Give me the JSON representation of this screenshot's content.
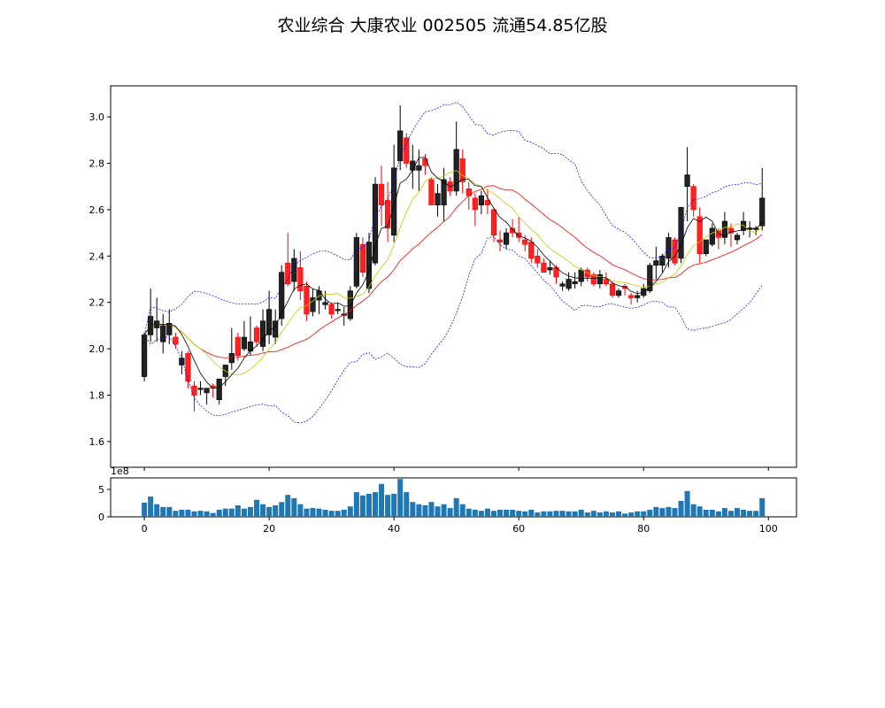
{
  "title": "农业综合 大康农业 002505 流通54.85亿股",
  "colors": {
    "up": "#000000",
    "down": "#ff0000",
    "ma5": "#000000",
    "ma10": "#c8c800",
    "ma20": "#ff0000",
    "boll": "#0000ff",
    "volume": "#1f77b4"
  },
  "chart_data": [
    {
      "type": "candlestick",
      "title": "农业综合 大康农业 002505 流通54.85亿股",
      "xlim": [
        -5.4,
        104.5
      ],
      "ylim": [
        1.489,
        3.134
      ],
      "yticks": [
        "1.6",
        "1.8",
        "2.0",
        "2.2",
        "2.4",
        "2.6",
        "2.8",
        "3.0"
      ],
      "lines": [
        "MA5",
        "MA10",
        "MA20",
        "BOLL upper",
        "BOLL lower"
      ],
      "ohlc": [
        [
          1.88,
          2.07,
          1.86,
          2.06
        ],
        [
          2.06,
          2.26,
          2.03,
          2.14
        ],
        [
          2.09,
          2.22,
          2.03,
          2.12
        ],
        [
          2.03,
          2.15,
          1.98,
          2.1
        ],
        [
          2.06,
          2.17,
          2.02,
          2.11
        ],
        [
          2.05,
          2.07,
          2.0,
          2.02
        ],
        [
          1.93,
          1.99,
          1.89,
          1.96
        ],
        [
          1.98,
          1.99,
          1.83,
          1.86
        ],
        [
          1.84,
          1.86,
          1.73,
          1.8
        ],
        [
          1.83,
          1.86,
          1.8,
          1.83
        ],
        [
          1.81,
          1.83,
          1.76,
          1.83
        ],
        [
          1.84,
          1.85,
          1.79,
          1.83
        ],
        [
          1.78,
          1.87,
          1.76,
          1.87
        ],
        [
          1.88,
          1.93,
          1.84,
          1.93
        ],
        [
          1.94,
          2.09,
          1.91,
          1.98
        ],
        [
          2.05,
          2.07,
          1.95,
          1.97
        ],
        [
          2.0,
          2.12,
          1.99,
          2.05
        ],
        [
          1.99,
          2.14,
          1.97,
          2.03
        ],
        [
          2.09,
          2.1,
          2.01,
          2.03
        ],
        [
          2.01,
          2.17,
          1.99,
          2.12
        ],
        [
          2.06,
          2.25,
          2.02,
          2.17
        ],
        [
          2.05,
          2.17,
          2.02,
          2.12
        ],
        [
          2.13,
          2.36,
          2.1,
          2.33
        ],
        [
          2.37,
          2.5,
          2.27,
          2.28
        ],
        [
          2.29,
          2.43,
          2.25,
          2.39
        ],
        [
          2.35,
          2.42,
          2.21,
          2.25
        ],
        [
          2.27,
          2.29,
          2.12,
          2.15
        ],
        [
          2.16,
          2.26,
          2.14,
          2.22
        ],
        [
          2.21,
          2.27,
          2.15,
          2.25
        ],
        [
          2.19,
          2.25,
          2.17,
          2.2
        ],
        [
          2.19,
          2.2,
          2.13,
          2.15
        ],
        [
          2.17,
          2.2,
          2.15,
          2.17
        ],
        [
          2.15,
          2.18,
          2.1,
          2.15
        ],
        [
          2.13,
          2.27,
          2.12,
          2.25
        ],
        [
          2.27,
          2.5,
          2.26,
          2.48
        ],
        [
          2.45,
          2.48,
          2.31,
          2.33
        ],
        [
          2.26,
          2.5,
          2.24,
          2.46
        ],
        [
          2.37,
          2.74,
          2.36,
          2.71
        ],
        [
          2.71,
          2.79,
          2.53,
          2.62
        ],
        [
          2.64,
          2.72,
          2.46,
          2.52
        ],
        [
          2.49,
          2.88,
          2.46,
          2.78
        ],
        [
          2.81,
          3.05,
          2.77,
          2.94
        ],
        [
          2.91,
          2.93,
          2.78,
          2.8
        ],
        [
          2.77,
          2.88,
          2.69,
          2.81
        ],
        [
          2.77,
          2.86,
          2.68,
          2.79
        ],
        [
          2.82,
          2.84,
          2.75,
          2.79
        ],
        [
          2.73,
          2.74,
          2.62,
          2.62
        ],
        [
          2.62,
          2.71,
          2.57,
          2.67
        ],
        [
          2.62,
          2.78,
          2.55,
          2.73
        ],
        [
          2.72,
          2.74,
          2.66,
          2.68
        ],
        [
          2.68,
          2.98,
          2.66,
          2.86
        ],
        [
          2.82,
          2.86,
          2.67,
          2.72
        ],
        [
          2.69,
          2.72,
          2.6,
          2.66
        ],
        [
          2.65,
          2.67,
          2.53,
          2.6
        ],
        [
          2.62,
          2.68,
          2.58,
          2.66
        ],
        [
          2.64,
          2.69,
          2.58,
          2.62
        ],
        [
          2.6,
          2.61,
          2.46,
          2.49
        ],
        [
          2.47,
          2.51,
          2.42,
          2.46
        ],
        [
          2.45,
          2.52,
          2.43,
          2.5
        ],
        [
          2.52,
          2.56,
          2.48,
          2.5
        ],
        [
          2.5,
          2.57,
          2.46,
          2.48
        ],
        [
          2.47,
          2.49,
          2.42,
          2.45
        ],
        [
          2.46,
          2.48,
          2.37,
          2.39
        ],
        [
          2.4,
          2.43,
          2.35,
          2.37
        ],
        [
          2.37,
          2.39,
          2.34,
          2.33
        ],
        [
          2.34,
          2.38,
          2.32,
          2.35
        ],
        [
          2.35,
          2.36,
          2.28,
          2.31
        ],
        [
          2.27,
          2.29,
          2.25,
          2.28
        ],
        [
          2.26,
          2.33,
          2.25,
          2.3
        ],
        [
          2.28,
          2.33,
          2.26,
          2.29
        ],
        [
          2.29,
          2.35,
          2.27,
          2.34
        ],
        [
          2.34,
          2.35,
          2.29,
          2.31
        ],
        [
          2.32,
          2.33,
          2.27,
          2.28
        ],
        [
          2.28,
          2.34,
          2.26,
          2.32
        ],
        [
          2.3,
          2.33,
          2.27,
          2.28
        ],
        [
          2.28,
          2.29,
          2.22,
          2.23
        ],
        [
          2.23,
          2.26,
          2.22,
          2.25
        ],
        [
          2.27,
          2.28,
          2.23,
          2.26
        ],
        [
          2.23,
          2.24,
          2.19,
          2.22
        ],
        [
          2.22,
          2.25,
          2.2,
          2.23
        ],
        [
          2.23,
          2.28,
          2.22,
          2.26
        ],
        [
          2.25,
          2.37,
          2.24,
          2.36
        ],
        [
          2.36,
          2.44,
          2.3,
          2.38
        ],
        [
          2.36,
          2.41,
          2.33,
          2.4
        ],
        [
          2.39,
          2.5,
          2.35,
          2.48
        ],
        [
          2.47,
          2.48,
          2.36,
          2.37
        ],
        [
          2.39,
          2.61,
          2.37,
          2.61
        ],
        [
          2.7,
          2.87,
          2.55,
          2.75
        ],
        [
          2.7,
          2.71,
          2.57,
          2.6
        ],
        [
          2.57,
          2.61,
          2.37,
          2.41
        ],
        [
          2.41,
          2.47,
          2.4,
          2.47
        ],
        [
          2.45,
          2.54,
          2.44,
          2.52
        ],
        [
          2.51,
          2.52,
          2.43,
          2.48
        ],
        [
          2.48,
          2.59,
          2.45,
          2.55
        ],
        [
          2.52,
          2.54,
          2.44,
          2.5
        ],
        [
          2.47,
          2.5,
          2.45,
          2.49
        ],
        [
          2.51,
          2.59,
          2.49,
          2.55
        ],
        [
          2.52,
          2.55,
          2.48,
          2.52
        ],
        [
          2.52,
          2.53,
          2.49,
          2.52
        ],
        [
          2.53,
          2.78,
          2.51,
          2.65
        ]
      ]
    },
    {
      "type": "bar",
      "xticks": [
        "0",
        "20",
        "40",
        "60",
        "80",
        "100"
      ],
      "yticks": [
        "0",
        "5"
      ],
      "offset_label": "1e8",
      "ylim": [
        0,
        7.1
      ],
      "values": [
        2.6,
        3.7,
        2.3,
        1.8,
        1.8,
        1.1,
        1.3,
        1.3,
        1.0,
        1.1,
        1.0,
        0.7,
        1.3,
        1.5,
        1.5,
        2.1,
        1.5,
        1.8,
        3.1,
        2.3,
        1.8,
        2.1,
        2.7,
        4.0,
        3.4,
        2.3,
        1.5,
        1.6,
        1.5,
        1.3,
        1.1,
        1.1,
        1.3,
        1.9,
        4.5,
        3.9,
        4.2,
        4.5,
        6.0,
        4.0,
        4.2,
        6.9,
        4.5,
        2.7,
        2.3,
        2.1,
        2.7,
        1.9,
        2.3,
        1.6,
        3.4,
        2.3,
        1.5,
        1.3,
        1.1,
        1.5,
        1.1,
        1.3,
        1.3,
        1.3,
        1.1,
        1.0,
        1.3,
        0.8,
        1.0,
        1.0,
        1.1,
        1.1,
        1.0,
        1.0,
        1.3,
        0.8,
        1.1,
        0.8,
        1.0,
        0.8,
        1.0,
        0.6,
        0.8,
        1.0,
        1.0,
        1.3,
        1.8,
        1.6,
        1.8,
        1.6,
        2.9,
        4.7,
        2.3,
        1.9,
        1.3,
        1.3,
        1.0,
        1.6,
        1.1,
        1.6,
        1.3,
        1.1,
        1.1,
        3.4
      ]
    }
  ]
}
